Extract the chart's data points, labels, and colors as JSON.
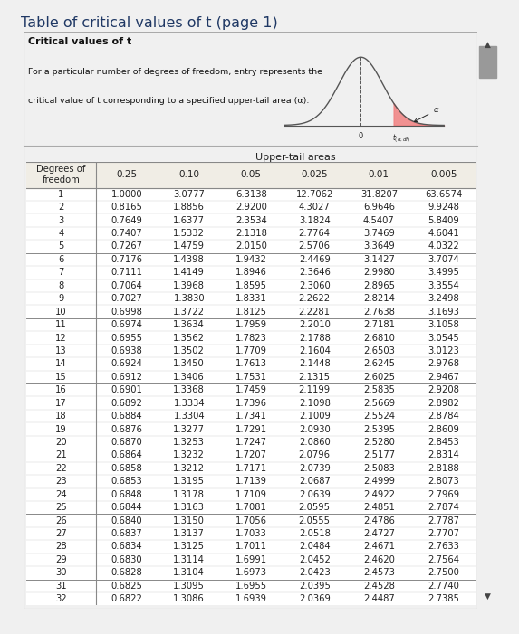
{
  "title": "Table of critical values of t (page 1)",
  "title_color": "#1f3864",
  "page_bg": "#f0f0f0",
  "panel_bg": "#e8e4da",
  "table_bg": "#ffffff",
  "header_text1": "Critical values of t",
  "header_text2": "For a particular number of degrees of freedom, entry represents the",
  "header_text3": "critical value of t corresponding to a specified upper-tail area (α).",
  "upper_tail_label": "Upper-tail areas",
  "col_headers": [
    "Degrees of\nfreedom",
    "0.25",
    "0.10",
    "0.05",
    "0.025",
    "0.01",
    "0.005"
  ],
  "rows": [
    [
      1,
      1.0,
      3.0777,
      6.3138,
      12.7062,
      31.8207,
      63.6574
    ],
    [
      2,
      0.8165,
      1.8856,
      2.92,
      4.3027,
      6.9646,
      9.9248
    ],
    [
      3,
      0.7649,
      1.6377,
      2.3534,
      3.1824,
      4.5407,
      5.8409
    ],
    [
      4,
      0.7407,
      1.5332,
      2.1318,
      2.7764,
      3.7469,
      4.6041
    ],
    [
      5,
      0.7267,
      1.4759,
      2.015,
      2.5706,
      3.3649,
      4.0322
    ],
    [
      6,
      0.7176,
      1.4398,
      1.9432,
      2.4469,
      3.1427,
      3.7074
    ],
    [
      7,
      0.7111,
      1.4149,
      1.8946,
      2.3646,
      2.998,
      3.4995
    ],
    [
      8,
      0.7064,
      1.3968,
      1.8595,
      2.306,
      2.8965,
      3.3554
    ],
    [
      9,
      0.7027,
      1.383,
      1.8331,
      2.2622,
      2.8214,
      3.2498
    ],
    [
      10,
      0.6998,
      1.3722,
      1.8125,
      2.2281,
      2.7638,
      3.1693
    ],
    [
      11,
      0.6974,
      1.3634,
      1.7959,
      2.201,
      2.7181,
      3.1058
    ],
    [
      12,
      0.6955,
      1.3562,
      1.7823,
      2.1788,
      2.681,
      3.0545
    ],
    [
      13,
      0.6938,
      1.3502,
      1.7709,
      2.1604,
      2.6503,
      3.0123
    ],
    [
      14,
      0.6924,
      1.345,
      1.7613,
      2.1448,
      2.6245,
      2.9768
    ],
    [
      15,
      0.6912,
      1.3406,
      1.7531,
      2.1315,
      2.6025,
      2.9467
    ],
    [
      16,
      0.6901,
      1.3368,
      1.7459,
      2.1199,
      2.5835,
      2.9208
    ],
    [
      17,
      0.6892,
      1.3334,
      1.7396,
      2.1098,
      2.5669,
      2.8982
    ],
    [
      18,
      0.6884,
      1.3304,
      1.7341,
      2.1009,
      2.5524,
      2.8784
    ],
    [
      19,
      0.6876,
      1.3277,
      1.7291,
      2.093,
      2.5395,
      2.8609
    ],
    [
      20,
      0.687,
      1.3253,
      1.7247,
      2.086,
      2.528,
      2.8453
    ],
    [
      21,
      0.6864,
      1.3232,
      1.7207,
      2.0796,
      2.5177,
      2.8314
    ],
    [
      22,
      0.6858,
      1.3212,
      1.7171,
      2.0739,
      2.5083,
      2.8188
    ],
    [
      23,
      0.6853,
      1.3195,
      1.7139,
      2.0687,
      2.4999,
      2.8073
    ],
    [
      24,
      0.6848,
      1.3178,
      1.7109,
      2.0639,
      2.4922,
      2.7969
    ],
    [
      25,
      0.6844,
      1.3163,
      1.7081,
      2.0595,
      2.4851,
      2.7874
    ],
    [
      26,
      0.684,
      1.315,
      1.7056,
      2.0555,
      2.4786,
      2.7787
    ],
    [
      27,
      0.6837,
      1.3137,
      1.7033,
      2.0518,
      2.4727,
      2.7707
    ],
    [
      28,
      0.6834,
      1.3125,
      1.7011,
      2.0484,
      2.4671,
      2.7633
    ],
    [
      29,
      0.683,
      1.3114,
      1.6991,
      2.0452,
      2.462,
      2.7564
    ],
    [
      30,
      0.6828,
      1.3104,
      1.6973,
      2.0423,
      2.4573,
      2.75
    ],
    [
      31,
      0.6825,
      1.3095,
      1.6955,
      2.0395,
      2.4528,
      2.774
    ],
    [
      32,
      0.6822,
      1.3086,
      1.6939,
      2.0369,
      2.4487,
      2.7385
    ]
  ],
  "group_breaks": [
    5,
    10,
    15,
    20,
    25,
    30
  ]
}
